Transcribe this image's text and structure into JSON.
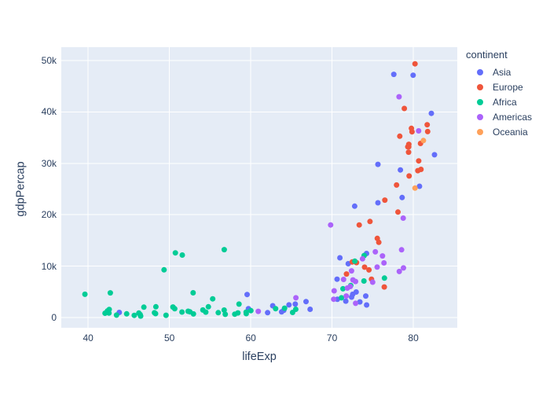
{
  "text_color": "#2a3f5f",
  "chart_data": {
    "type": "scatter",
    "title": "",
    "xlabel": "lifeExp",
    "ylabel": "gdpPercap",
    "legend_title": "continent",
    "legend_position": "right",
    "grid": true,
    "plot_bg": "#E5ECF6",
    "grid_color": "#ffffff",
    "x_range": [
      36.7,
      85.4
    ],
    "y_range": [
      -2000,
      52600
    ],
    "xticks": [
      {
        "v": 40,
        "label": "40"
      },
      {
        "v": 50,
        "label": "50"
      },
      {
        "v": 60,
        "label": "60"
      },
      {
        "v": 70,
        "label": "70"
      },
      {
        "v": 80,
        "label": "80"
      }
    ],
    "yticks": [
      {
        "v": 0,
        "label": "0"
      },
      {
        "v": 10000,
        "label": "10k"
      },
      {
        "v": 20000,
        "label": "20k"
      },
      {
        "v": 30000,
        "label": "30k"
      },
      {
        "v": 40000,
        "label": "40k"
      },
      {
        "v": 50000,
        "label": "50k"
      }
    ],
    "series": [
      {
        "name": "Asia",
        "color": "#636EFA",
        "points": [
          [
            43.83,
            975
          ],
          [
            75.64,
            29796
          ],
          [
            64.06,
            1391
          ],
          [
            59.72,
            1714
          ],
          [
            72.96,
            4959
          ],
          [
            82.21,
            39725
          ],
          [
            64.7,
            2452
          ],
          [
            70.65,
            3541
          ],
          [
            70.96,
            11606
          ],
          [
            59.55,
            4471
          ],
          [
            80.75,
            25523
          ],
          [
            82.6,
            31656
          ],
          [
            72.54,
            4519
          ],
          [
            67.3,
            1593
          ],
          [
            78.62,
            23348
          ],
          [
            77.59,
            47307
          ],
          [
            71.99,
            10461
          ],
          [
            74.24,
            12452
          ],
          [
            66.8,
            3096
          ],
          [
            62.07,
            944
          ],
          [
            63.79,
            1091
          ],
          [
            75.64,
            22316
          ],
          [
            65.48,
            2606
          ],
          [
            71.69,
            3190
          ],
          [
            72.78,
            21654
          ],
          [
            79.97,
            47143
          ],
          [
            72.4,
            3970
          ],
          [
            74.14,
            4185
          ],
          [
            78.4,
            28718
          ],
          [
            70.62,
            7458
          ],
          [
            74.25,
            2442
          ],
          [
            73.42,
            3025
          ],
          [
            62.7,
            2281
          ]
        ]
      },
      {
        "name": "Europe",
        "color": "#EF553B",
        "points": [
          [
            76.42,
            5937
          ],
          [
            79.83,
            36126
          ],
          [
            79.44,
            33693
          ],
          [
            74.85,
            7446
          ],
          [
            73.0,
            10681
          ],
          [
            75.75,
            14619
          ],
          [
            76.49,
            22833
          ],
          [
            78.33,
            35278
          ],
          [
            79.31,
            33207
          ],
          [
            80.66,
            30470
          ],
          [
            79.41,
            32170
          ],
          [
            79.48,
            27538
          ],
          [
            73.34,
            18009
          ],
          [
            81.76,
            36181
          ],
          [
            78.89,
            40676
          ],
          [
            80.55,
            28570
          ],
          [
            74.54,
            9254
          ],
          [
            79.76,
            36798
          ],
          [
            80.2,
            49357
          ],
          [
            75.56,
            15390
          ],
          [
            78.1,
            20510
          ],
          [
            72.48,
            10808
          ],
          [
            74.0,
            9787
          ],
          [
            74.66,
            18678
          ],
          [
            77.93,
            25768
          ],
          [
            80.94,
            28821
          ],
          [
            80.88,
            33860
          ],
          [
            81.7,
            37506
          ],
          [
            71.78,
            8458
          ],
          [
            79.43,
            33203
          ]
        ]
      },
      {
        "name": "Africa",
        "color": "#00CC96",
        "points": [
          [
            72.3,
            6223
          ],
          [
            42.73,
            4797
          ],
          [
            56.73,
            1441
          ],
          [
            50.73,
            12570
          ],
          [
            52.3,
            1217
          ],
          [
            49.58,
            430
          ],
          [
            50.43,
            2042
          ],
          [
            44.74,
            706
          ],
          [
            50.65,
            1704
          ],
          [
            65.15,
            986
          ],
          [
            46.46,
            278
          ],
          [
            55.32,
            3633
          ],
          [
            48.33,
            2082
          ],
          [
            54.79,
            2082
          ],
          [
            71.34,
            5581
          ],
          [
            51.58,
            12154
          ],
          [
            58.04,
            641
          ],
          [
            52.95,
            691
          ],
          [
            56.74,
            13206
          ],
          [
            59.45,
            753
          ],
          [
            60.02,
            1328
          ],
          [
            56.01,
            942
          ],
          [
            46.39,
            579
          ],
          [
            54.11,
            1463
          ],
          [
            42.59,
            1569
          ],
          [
            45.68,
            415
          ],
          [
            73.95,
            12057
          ],
          [
            59.44,
            1045
          ],
          [
            48.3,
            759
          ],
          [
            54.47,
            1043
          ],
          [
            64.16,
            1803
          ],
          [
            72.8,
            10957
          ],
          [
            71.16,
            3820
          ],
          [
            42.08,
            824
          ],
          [
            52.91,
            4811
          ],
          [
            56.87,
            619
          ],
          [
            46.86,
            2014
          ],
          [
            76.44,
            7670
          ],
          [
            46.24,
            863
          ],
          [
            65.53,
            1598
          ],
          [
            63.06,
            1712
          ],
          [
            42.57,
            863
          ],
          [
            48.16,
            926
          ],
          [
            49.34,
            9270
          ],
          [
            58.56,
            2602
          ],
          [
            39.61,
            4513
          ],
          [
            52.52,
            1107
          ],
          [
            58.42,
            883
          ],
          [
            73.92,
            7093
          ],
          [
            51.54,
            1056
          ],
          [
            42.38,
            1271
          ],
          [
            43.49,
            470
          ]
        ]
      },
      {
        "name": "Americas",
        "color": "#AB63FA",
        "points": [
          [
            75.32,
            12779
          ],
          [
            65.55,
            3822
          ],
          [
            72.39,
            9066
          ],
          [
            80.65,
            36319
          ],
          [
            78.55,
            13172
          ],
          [
            72.89,
            7007
          ],
          [
            78.78,
            9645
          ],
          [
            78.27,
            8948
          ],
          [
            72.24,
            6025
          ],
          [
            74.99,
            6873
          ],
          [
            71.88,
            5728
          ],
          [
            70.26,
            5186
          ],
          [
            60.92,
            1202
          ],
          [
            70.2,
            3548
          ],
          [
            72.57,
            7321
          ],
          [
            76.2,
            11978
          ],
          [
            72.9,
            2749
          ],
          [
            75.54,
            9809
          ],
          [
            71.75,
            4173
          ],
          [
            71.42,
            7409
          ],
          [
            78.75,
            19329
          ],
          [
            69.82,
            18009
          ],
          [
            78.24,
            42952
          ],
          [
            76.38,
            10611
          ],
          [
            73.75,
            11416
          ]
        ]
      },
      {
        "name": "Oceania",
        "color": "#FFA15A",
        "points": [
          [
            81.24,
            34435
          ],
          [
            80.2,
            25185
          ]
        ]
      }
    ]
  }
}
